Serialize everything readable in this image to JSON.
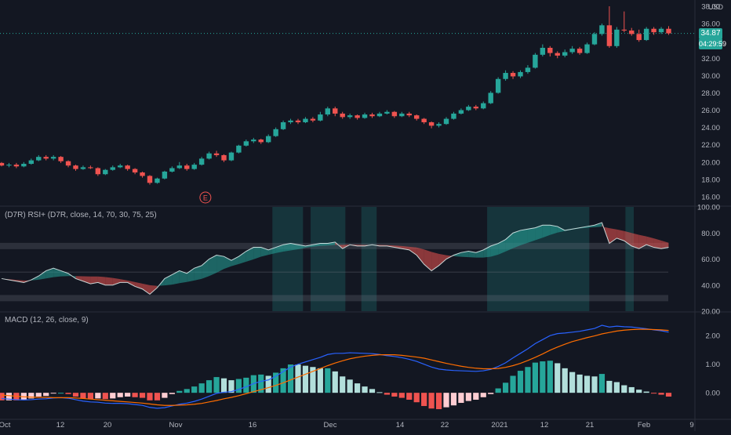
{
  "currency": "USD",
  "last_price": "34.87",
  "countdown": "04:29:59",
  "earnings_marker": "E",
  "rsi_label": "(D7R) RSI+ (D7R, close, 14, 70, 30, 75, 25)",
  "macd_label": "MACD (12, 26, close, 9)",
  "colors": {
    "background": "#131722",
    "up": "#26a69a",
    "down": "#ef5350",
    "macd_line": "#2962ff",
    "signal_line": "#ff6d00",
    "text": "#b2b5be"
  },
  "chart_data": [
    {
      "type": "candlestick",
      "ylim": [
        15,
        38
      ],
      "y_ticks": [
        "16.00",
        "18.00",
        "20.00",
        "22.00",
        "24.00",
        "26.00",
        "28.00",
        "30.00",
        "32.00",
        "34.00",
        "36.00",
        "38.00"
      ],
      "x_ticks": [
        "Oct",
        "12",
        "20",
        "Nov",
        "16",
        "Dec",
        "14",
        "22",
        "2021",
        "12",
        "21",
        "Feb",
        "9"
      ],
      "candles": [
        [
          19.9,
          19.6,
          20.0,
          19.5
        ],
        [
          19.6,
          19.7,
          19.9,
          19.4
        ],
        [
          19.7,
          19.5,
          19.9,
          19.3
        ],
        [
          19.5,
          19.8,
          20.0,
          19.4
        ],
        [
          19.8,
          20.2,
          20.4,
          19.7
        ],
        [
          20.2,
          20.6,
          20.8,
          20.1
        ],
        [
          20.6,
          20.4,
          20.8,
          20.2
        ],
        [
          20.4,
          20.6,
          20.8,
          20.2
        ],
        [
          20.6,
          20.1,
          20.7,
          19.9
        ],
        [
          20.1,
          19.6,
          20.2,
          19.4
        ],
        [
          19.6,
          19.2,
          19.7,
          19.0
        ],
        [
          19.2,
          19.4,
          19.6,
          19.1
        ],
        [
          19.4,
          19.3,
          19.6,
          19.2
        ],
        [
          19.3,
          18.6,
          19.4,
          18.4
        ],
        [
          18.6,
          19.1,
          19.2,
          18.5
        ],
        [
          19.1,
          19.4,
          19.6,
          19.0
        ],
        [
          19.4,
          19.6,
          19.8,
          19.3
        ],
        [
          19.6,
          19.2,
          19.7,
          19.0
        ],
        [
          19.2,
          18.8,
          19.3,
          18.6
        ],
        [
          18.8,
          18.4,
          18.9,
          18.2
        ],
        [
          18.4,
          17.6,
          18.5,
          17.4
        ],
        [
          17.6,
          18.1,
          18.2,
          17.5
        ],
        [
          18.1,
          18.9,
          19.0,
          18.0
        ],
        [
          18.9,
          19.3,
          19.5,
          18.8
        ],
        [
          19.3,
          19.6,
          20.0,
          19.2
        ],
        [
          19.6,
          19.2,
          19.8,
          19.0
        ],
        [
          19.2,
          19.7,
          19.9,
          19.1
        ],
        [
          19.7,
          20.4,
          20.6,
          19.6
        ],
        [
          20.4,
          21.0,
          21.2,
          20.3
        ],
        [
          21.0,
          20.8,
          21.3,
          20.6
        ],
        [
          20.8,
          20.2,
          20.9,
          20.0
        ],
        [
          20.2,
          21.1,
          21.2,
          20.1
        ],
        [
          21.1,
          21.9,
          22.0,
          21.0
        ],
        [
          21.9,
          22.4,
          22.6,
          21.8
        ],
        [
          22.4,
          22.6,
          22.8,
          22.2
        ],
        [
          22.6,
          22.3,
          22.7,
          22.1
        ],
        [
          22.3,
          23.0,
          23.2,
          22.2
        ],
        [
          23.0,
          23.8,
          24.0,
          22.9
        ],
        [
          23.8,
          24.6,
          24.8,
          23.7
        ],
        [
          24.6,
          24.8,
          25.0,
          24.4
        ],
        [
          24.8,
          24.6,
          25.0,
          24.4
        ],
        [
          24.6,
          25.0,
          25.2,
          24.5
        ],
        [
          25.0,
          24.8,
          25.2,
          24.6
        ],
        [
          24.8,
          25.5,
          25.8,
          24.7
        ],
        [
          25.5,
          26.2,
          26.4,
          25.3
        ],
        [
          26.2,
          25.6,
          26.4,
          25.3
        ],
        [
          25.6,
          25.2,
          25.8,
          25.0
        ],
        [
          25.2,
          25.4,
          25.6,
          25.0
        ],
        [
          25.4,
          25.1,
          25.5,
          24.9
        ],
        [
          25.1,
          25.5,
          25.7,
          25.0
        ],
        [
          25.5,
          25.3,
          25.7,
          25.1
        ],
        [
          25.3,
          25.6,
          25.8,
          25.2
        ],
        [
          25.6,
          25.8,
          26.0,
          25.5
        ],
        [
          25.8,
          25.3,
          25.9,
          25.1
        ],
        [
          25.3,
          25.6,
          25.8,
          25.2
        ],
        [
          25.6,
          25.4,
          25.8,
          25.2
        ],
        [
          25.4,
          25.0,
          25.5,
          24.8
        ],
        [
          25.0,
          24.6,
          25.1,
          24.4
        ],
        [
          24.6,
          24.2,
          24.7,
          23.9
        ],
        [
          24.2,
          24.4,
          24.6,
          24.0
        ],
        [
          24.4,
          25.0,
          25.2,
          24.3
        ],
        [
          25.0,
          25.6,
          25.8,
          24.9
        ],
        [
          25.6,
          26.0,
          26.2,
          25.5
        ],
        [
          26.0,
          26.4,
          26.6,
          25.9
        ],
        [
          26.4,
          26.2,
          26.6,
          26.0
        ],
        [
          26.2,
          26.8,
          27.0,
          26.1
        ],
        [
          26.8,
          28.0,
          28.2,
          26.7
        ],
        [
          28.0,
          29.6,
          29.8,
          27.9
        ],
        [
          29.6,
          30.3,
          30.6,
          29.4
        ],
        [
          30.3,
          29.9,
          30.5,
          29.6
        ],
        [
          29.9,
          30.4,
          30.6,
          29.7
        ],
        [
          30.4,
          30.9,
          31.2,
          30.2
        ],
        [
          30.9,
          32.4,
          32.6,
          30.8
        ],
        [
          32.4,
          33.2,
          33.6,
          32.2
        ],
        [
          33.2,
          32.6,
          33.4,
          32.2
        ],
        [
          32.6,
          32.3,
          32.8,
          32.0
        ],
        [
          32.3,
          32.7,
          33.0,
          32.1
        ],
        [
          32.7,
          33.1,
          33.4,
          32.5
        ],
        [
          33.1,
          32.6,
          33.3,
          32.4
        ],
        [
          32.6,
          33.6,
          33.8,
          32.5
        ],
        [
          33.6,
          34.8,
          35.0,
          33.5
        ],
        [
          34.8,
          35.8,
          36.0,
          34.6
        ],
        [
          35.8,
          33.4,
          38.0,
          33.2
        ],
        [
          33.4,
          35.3,
          35.6,
          33.2
        ],
        [
          35.3,
          35.2,
          37.4,
          35.0
        ],
        [
          35.2,
          34.8,
          35.5,
          34.6
        ],
        [
          34.8,
          34.1,
          35.3,
          33.9
        ],
        [
          34.1,
          35.4,
          35.6,
          34.0
        ],
        [
          35.4,
          35.0,
          35.6,
          34.7
        ],
        [
          35.0,
          35.4,
          35.6,
          34.8
        ],
        [
          35.4,
          34.87,
          35.7,
          34.7
        ]
      ]
    },
    {
      "type": "line",
      "name": "RSI",
      "ylim": [
        20,
        100
      ],
      "y_ticks": [
        "20.00",
        "40.00",
        "60.00",
        "80.00",
        "100.00"
      ],
      "levels": [
        30,
        50,
        70
      ],
      "highlight_zones": [
        [
          0.392,
          0.436
        ],
        [
          0.447,
          0.497
        ],
        [
          0.52,
          0.542
        ],
        [
          0.701,
          0.848
        ],
        [
          0.9,
          0.912
        ]
      ],
      "values": [
        45,
        44,
        43,
        42,
        44,
        47,
        51,
        53,
        51,
        49,
        45,
        43,
        41,
        42,
        40,
        40,
        42,
        42,
        39,
        37,
        33,
        38,
        45,
        48,
        51,
        49,
        53,
        55,
        60,
        63,
        62,
        59,
        62,
        66,
        69,
        69,
        67,
        69,
        71,
        72,
        71,
        70,
        71,
        72,
        72,
        73,
        68,
        71,
        70,
        70,
        71,
        70,
        70,
        69,
        68,
        67,
        63,
        56,
        51,
        55,
        60,
        63,
        65,
        66,
        65,
        67,
        70,
        72,
        75,
        80,
        82,
        83,
        84,
        86,
        86,
        85,
        82,
        83,
        84,
        85,
        86,
        88,
        72,
        76,
        74,
        70,
        68,
        71,
        69,
        68,
        69
      ]
    },
    {
      "type": "bar+line",
      "name": "MACD",
      "ylim": [
        -0.9,
        2.8
      ],
      "y_ticks": [
        "0.00",
        "1.00",
        "2.00"
      ],
      "macd": [
        -0.2,
        -0.22,
        -0.24,
        -0.25,
        -0.24,
        -0.22,
        -0.21,
        -0.18,
        -0.17,
        -0.19,
        -0.24,
        -0.29,
        -0.32,
        -0.33,
        -0.36,
        -0.37,
        -0.37,
        -0.38,
        -0.41,
        -0.44,
        -0.51,
        -0.54,
        -0.52,
        -0.46,
        -0.4,
        -0.36,
        -0.3,
        -0.22,
        -0.12,
        -0.02,
        0.02,
        0.04,
        0.12,
        0.21,
        0.32,
        0.4,
        0.45,
        0.58,
        0.74,
        0.9,
        1.0,
        1.08,
        1.16,
        1.24,
        1.34,
        1.38,
        1.38,
        1.4,
        1.39,
        1.38,
        1.37,
        1.34,
        1.3,
        1.27,
        1.23,
        1.17,
        1.1,
        1.0,
        0.9,
        0.83,
        0.8,
        0.78,
        0.77,
        0.76,
        0.75,
        0.77,
        0.82,
        0.92,
        1.05,
        1.22,
        1.38,
        1.54,
        1.72,
        1.86,
        2.0,
        2.07,
        2.09,
        2.12,
        2.15,
        2.2,
        2.25,
        2.36,
        2.3,
        2.33,
        2.31,
        2.3,
        2.27,
        2.24,
        2.2,
        2.17,
        2.12
      ],
      "signal": [
        -0.08,
        -0.1,
        -0.12,
        -0.14,
        -0.15,
        -0.16,
        -0.16,
        -0.17,
        -0.17,
        -0.17,
        -0.18,
        -0.2,
        -0.22,
        -0.24,
        -0.26,
        -0.28,
        -0.3,
        -0.32,
        -0.34,
        -0.36,
        -0.39,
        -0.42,
        -0.44,
        -0.44,
        -0.43,
        -0.42,
        -0.4,
        -0.37,
        -0.32,
        -0.27,
        -0.21,
        -0.16,
        -0.1,
        -0.03,
        0.04,
        0.11,
        0.18,
        0.26,
        0.35,
        0.45,
        0.55,
        0.65,
        0.75,
        0.85,
        0.95,
        1.04,
        1.12,
        1.19,
        1.24,
        1.28,
        1.31,
        1.33,
        1.33,
        1.33,
        1.31,
        1.28,
        1.25,
        1.21,
        1.15,
        1.09,
        1.03,
        0.98,
        0.93,
        0.89,
        0.86,
        0.84,
        0.84,
        0.85,
        0.89,
        0.95,
        1.03,
        1.13,
        1.24,
        1.36,
        1.49,
        1.6,
        1.7,
        1.79,
        1.86,
        1.93,
        1.99,
        2.06,
        2.11,
        2.16,
        2.19,
        2.21,
        2.22,
        2.22,
        2.21,
        2.2,
        2.18
      ]
    }
  ]
}
